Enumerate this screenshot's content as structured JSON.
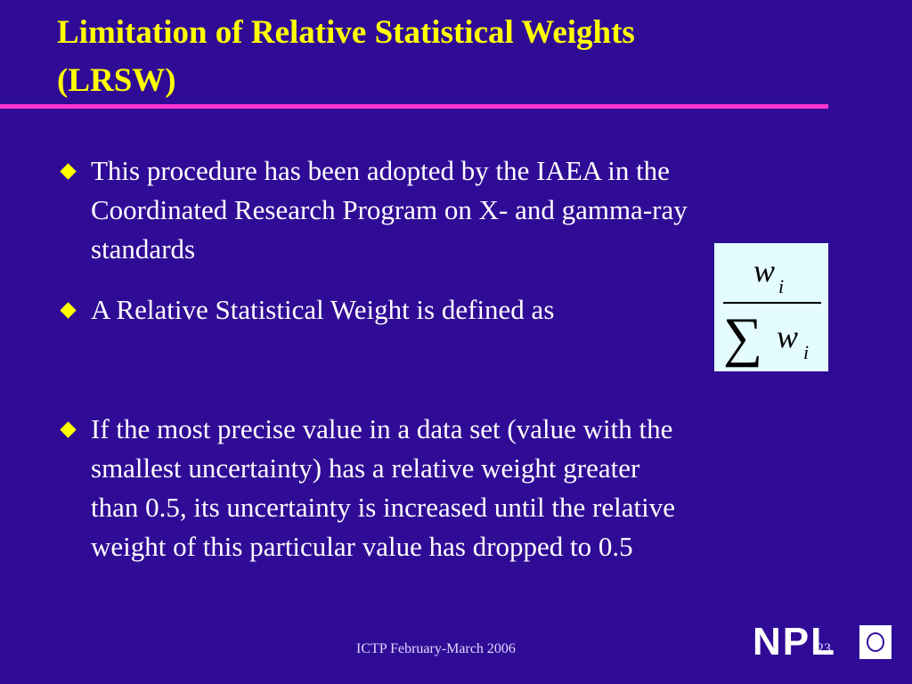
{
  "title": {
    "lines": [
      "Limitation of Relative Statistical Weights",
      "(LRSW)"
    ]
  },
  "bullets": [
    {
      "lines": [
        "This procedure has been adopted by the IAEA in the",
        "Coordinated Research Program on X- and gamma-ray",
        "standards"
      ]
    },
    {
      "lines": [
        "A Relative Statistical Weight is defined as"
      ]
    },
    {
      "lines": [
        "If the most precise value in a data set (value with the",
        "smallest uncertainty) has a relative weight greater",
        "than 0.5, its uncertainty is increased until the relative",
        "weight of this particular value has dropped to 0.5"
      ]
    }
  ],
  "formula": {
    "numerator": {
      "base": "w",
      "sub": "i"
    },
    "denominator": {
      "symbol": "∑",
      "base": "w",
      "sub": "i"
    }
  },
  "footer": {
    "text": "ICTP February-March 2006",
    "page": "23",
    "logo": "NPL"
  }
}
